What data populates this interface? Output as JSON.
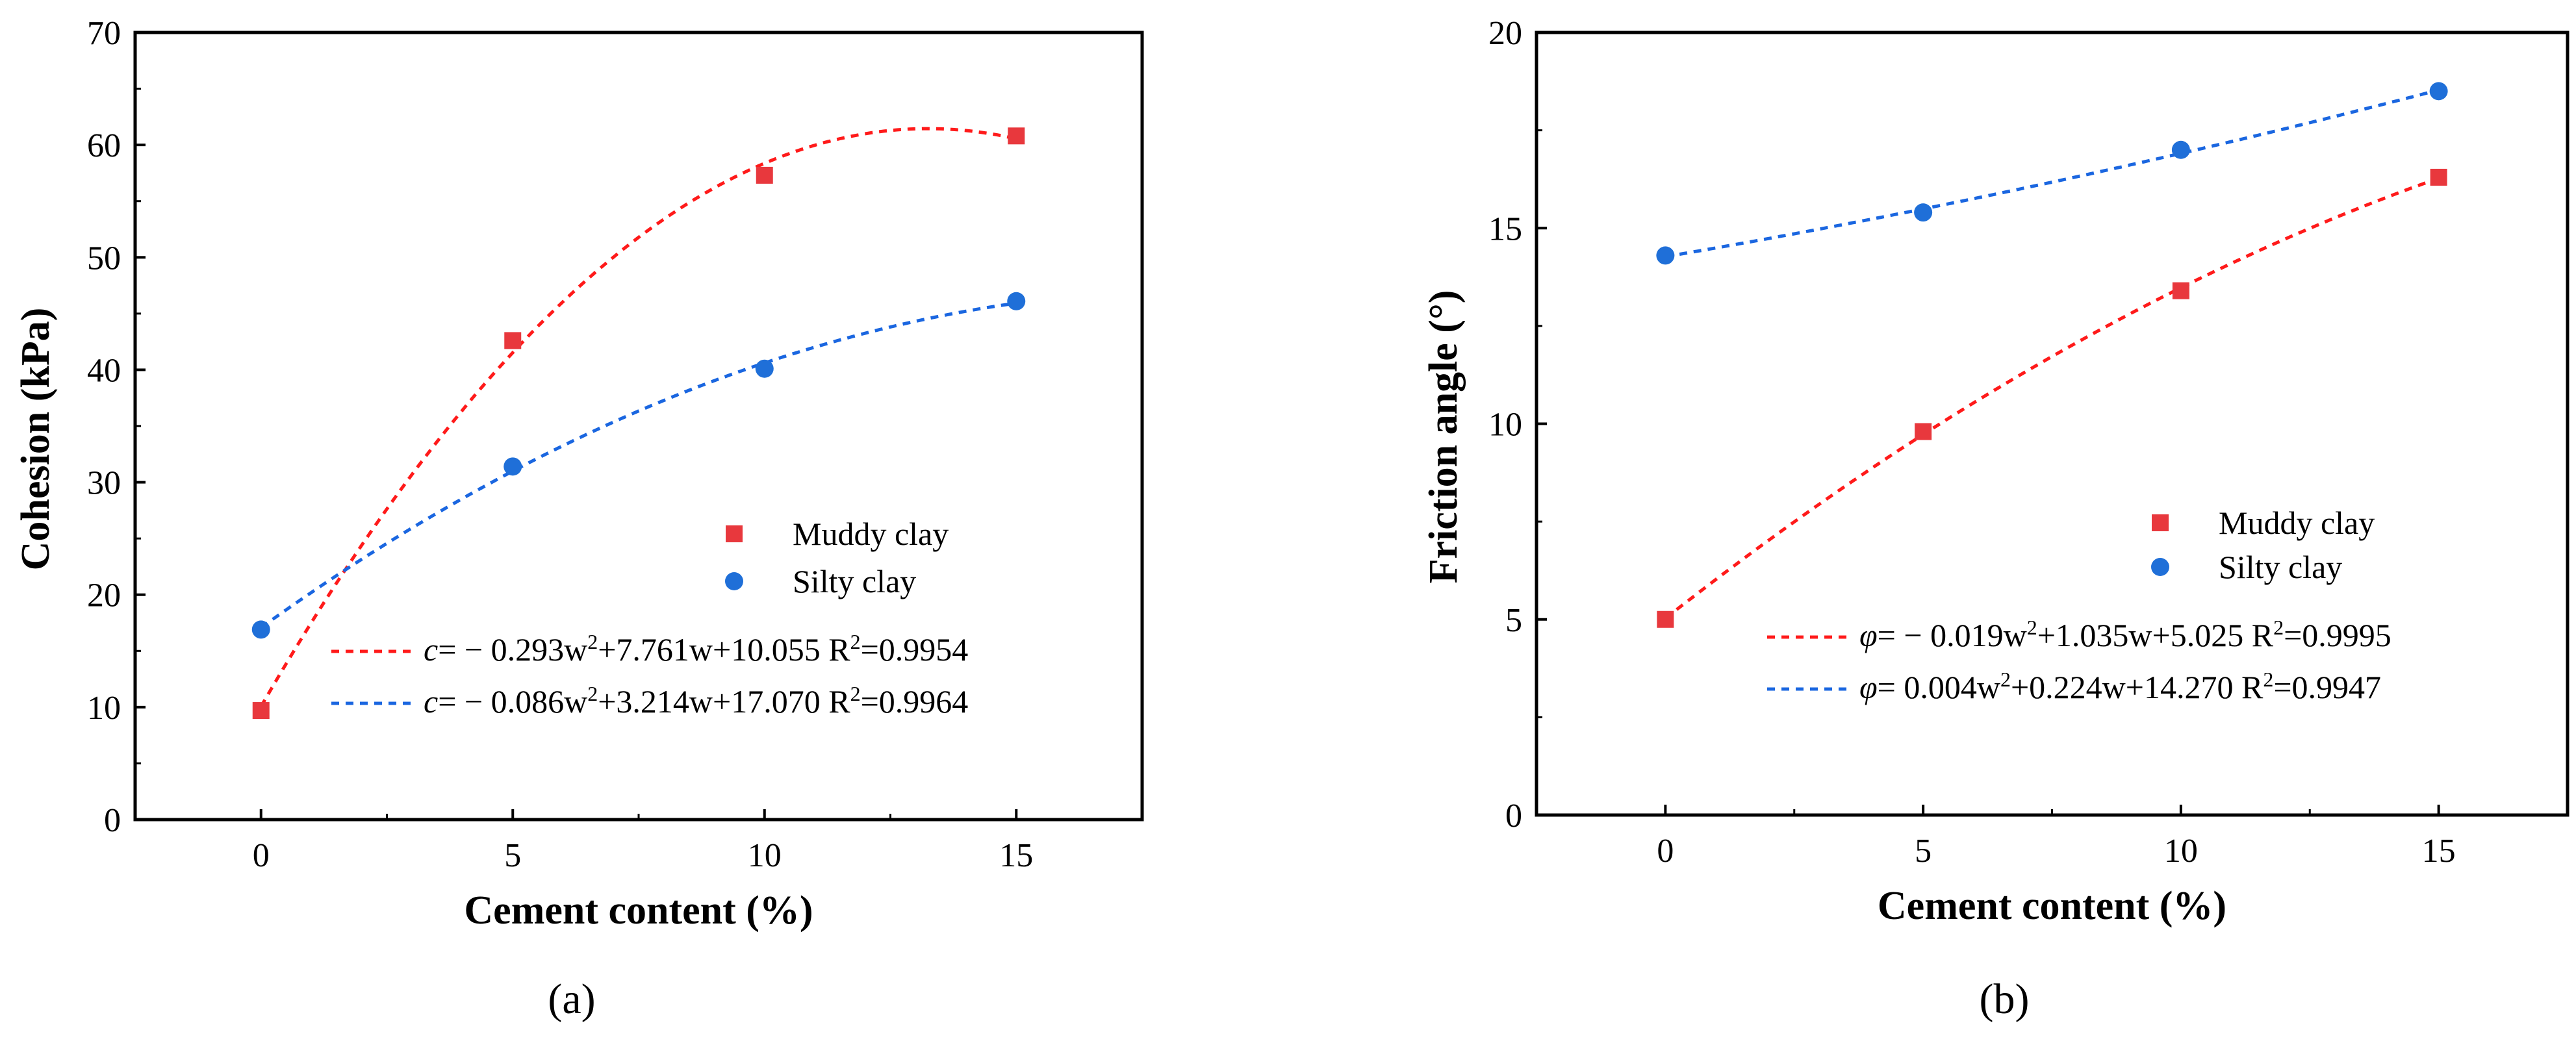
{
  "chart_data": [
    {
      "type": "scatter",
      "panel_label": "(a)",
      "xlabel": "Cement content (%)",
      "ylabel": "Cohesion (kPa)",
      "xlim": [
        -2.5,
        17.5
      ],
      "ylim": [
        0,
        70
      ],
      "xticks": [
        0,
        5,
        10,
        15
      ],
      "yticks": [
        0,
        10,
        20,
        30,
        40,
        50,
        60,
        70
      ],
      "series": [
        {
          "name": "Muddy clay",
          "marker": "square",
          "color": "#e8383d",
          "x": [
            0,
            5,
            10,
            15
          ],
          "values": [
            9.7,
            42.6,
            57.3,
            60.8
          ],
          "fit": {
            "a": -0.293,
            "b": 7.761,
            "c": 10.055
          },
          "fit_color": "#ff1a1a",
          "equation": {
            "sym": "c",
            "body": "= − 0.293w",
            "sup": "2",
            "rest": "+7.761w+10.055",
            "r2": "R",
            "r2sup": "2",
            "r2val": "=0.9954"
          }
        },
        {
          "name": "Silty clay",
          "marker": "circle",
          "color": "#1f6fd8",
          "x": [
            0,
            5,
            10,
            15
          ],
          "values": [
            16.9,
            31.4,
            40.1,
            46.1
          ],
          "fit": {
            "a": -0.086,
            "b": 3.214,
            "c": 17.07
          },
          "fit_color": "#1a66e0",
          "equation": {
            "sym": "c",
            "body": "= − 0.086w",
            "sup": "2",
            "rest": "+3.214w+17.070",
            "r2": "R",
            "r2sup": "2",
            "r2val": "=0.9964"
          }
        }
      ]
    },
    {
      "type": "scatter",
      "panel_label": "(b)",
      "xlabel": "Cement content (%)",
      "ylabel": "Friction angle (°)",
      "xlim": [
        -2.5,
        17.5
      ],
      "ylim": [
        0,
        20
      ],
      "xticks": [
        0,
        5,
        10,
        15
      ],
      "yticks": [
        0,
        5,
        10,
        15,
        20
      ],
      "series": [
        {
          "name": "Muddy clay",
          "marker": "square",
          "color": "#e8383d",
          "x": [
            0,
            5,
            10,
            15
          ],
          "values": [
            5.0,
            9.8,
            13.4,
            16.3
          ],
          "fit": {
            "a": -0.019,
            "b": 1.035,
            "c": 5.025
          },
          "fit_color": "#ff1a1a",
          "equation": {
            "sym": "φ",
            "body": "= − 0.019w",
            "sup": "2",
            "rest": "+1.035w+5.025",
            "r2": "R",
            "r2sup": "2",
            "r2val": "=0.9995"
          }
        },
        {
          "name": "Silty clay",
          "marker": "circle",
          "color": "#1f6fd8",
          "x": [
            0,
            5,
            10,
            15
          ],
          "values": [
            14.3,
            15.4,
            17.0,
            18.5
          ],
          "fit": {
            "a": 0.004,
            "b": 0.224,
            "c": 14.27
          },
          "fit_color": "#1a66e0",
          "equation": {
            "sym": "φ",
            "body": "= 0.004w",
            "sup": "2",
            "rest": "+0.224w+14.270",
            "r2": "R",
            "r2sup": "2",
            "r2val": "=0.9947"
          }
        }
      ]
    }
  ]
}
